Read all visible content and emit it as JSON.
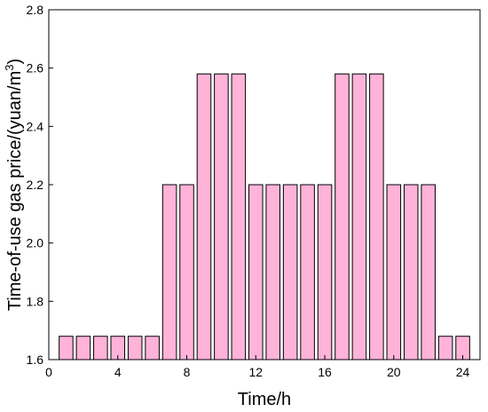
{
  "chart_data": {
    "type": "bar",
    "title": "",
    "xlabel": "Time/h",
    "ylabel": "Time-of-use gas price/(yuan/m",
    "ylabel_sup": "3",
    "ylabel_end": ")",
    "x": [
      1,
      2,
      3,
      4,
      5,
      6,
      7,
      8,
      9,
      10,
      11,
      12,
      13,
      14,
      15,
      16,
      17,
      18,
      19,
      20,
      21,
      22,
      23,
      24
    ],
    "values": [
      1.68,
      1.68,
      1.68,
      1.68,
      1.68,
      1.68,
      2.2,
      2.2,
      2.58,
      2.58,
      2.58,
      2.2,
      2.2,
      2.2,
      2.2,
      2.2,
      2.58,
      2.58,
      2.58,
      2.2,
      2.2,
      2.2,
      1.68,
      1.68
    ],
    "xlim": [
      0,
      25
    ],
    "ylim": [
      1.6,
      2.8
    ],
    "xticks": [
      "0",
      "4",
      "8",
      "12",
      "16",
      "20",
      "24"
    ],
    "yticks": [
      "1.6",
      "1.8",
      "2.0",
      "2.2",
      "2.4",
      "2.6",
      "2.8"
    ],
    "grid": false,
    "bar_color": "#ffb3d9",
    "edge_color": "#000000"
  }
}
